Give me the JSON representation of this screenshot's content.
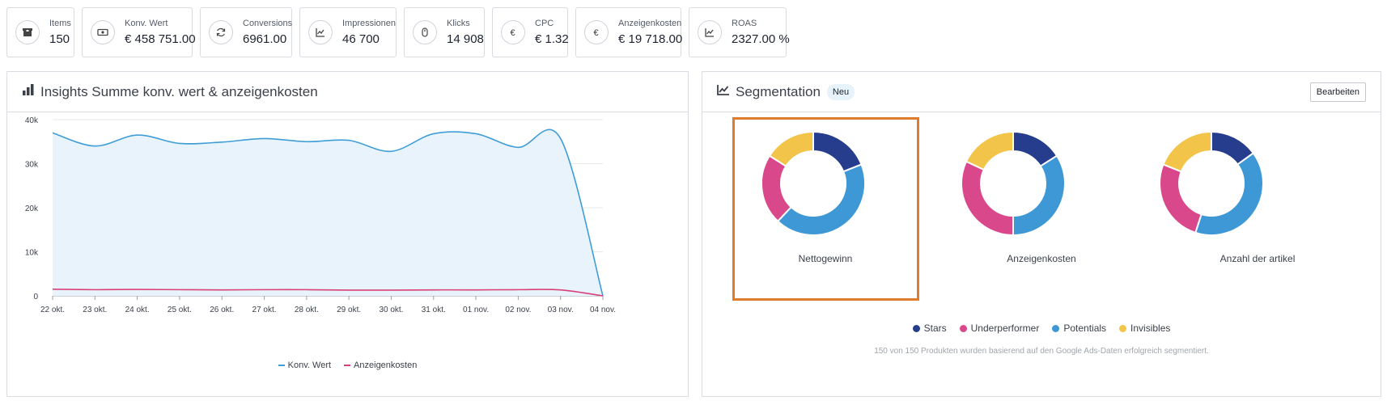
{
  "kpis": [
    {
      "label": "Items",
      "value": "150",
      "icon": "box-icon"
    },
    {
      "label": "Konv. Wert",
      "value": "€ 458 751.00",
      "icon": "money-icon"
    },
    {
      "label": "Conversions",
      "value": "6961.00",
      "icon": "refresh-icon"
    },
    {
      "label": "Impressionen",
      "value": "46 700",
      "icon": "line-chart-icon"
    },
    {
      "label": "Klicks",
      "value": "14 908",
      "icon": "mouse-icon"
    },
    {
      "label": "CPC",
      "value": "€ 1.32",
      "icon": "euro-icon"
    },
    {
      "label": "Anzeigenkosten",
      "value": "€ 19 718.00",
      "icon": "euro-icon"
    },
    {
      "label": "ROAS",
      "value": "2327.00 %",
      "icon": "line-chart-icon"
    }
  ],
  "insights": {
    "title": "Insights Summe konv. wert & anzeigenkosten"
  },
  "segmentation": {
    "title": "Segmentation",
    "badge": "Neu",
    "edit_label": "Bearbeiten",
    "note": "150 von 150 Produkten wurden basierend auf den Google Ads-Daten erfolgreich segmentiert."
  },
  "colors": {
    "stars": "#253d8c",
    "underperformer": "#d9488b",
    "potentials": "#3f98d6",
    "invisibles": "#f2c54a",
    "konv_wert": "#3f9ed6",
    "konv_wert_fill": "#e8f3fc",
    "anzeigenkosten": "#d9407a"
  },
  "chart_data": [
    {
      "type": "area",
      "title": "",
      "xlabel": "",
      "ylabel": "",
      "categories": [
        "22 okt.",
        "23 okt.",
        "24 okt.",
        "25 okt.",
        "26 okt.",
        "27 okt.",
        "28 okt.",
        "29 okt.",
        "30 okt.",
        "31 okt.",
        "01 nov.",
        "02 nov.",
        "03 nov.",
        "04 nov."
      ],
      "yticks": [
        "0",
        "10k",
        "20k",
        "30k",
        "40k"
      ],
      "ylim": [
        0,
        40000
      ],
      "series": [
        {
          "name": "Konv. Wert",
          "values": [
            37000,
            34000,
            36500,
            34600,
            34900,
            35700,
            35000,
            35300,
            32800,
            36800,
            36800,
            33700,
            35700,
            0
          ]
        },
        {
          "name": "Anzeigenkosten",
          "values": [
            1500,
            1400,
            1450,
            1400,
            1350,
            1400,
            1400,
            1300,
            1300,
            1350,
            1350,
            1400,
            1350,
            0
          ]
        }
      ],
      "grid": true,
      "legend": "bottom"
    },
    {
      "type": "pie",
      "title": "Nettogewinn",
      "categories": [
        "Stars",
        "Potentials",
        "Underperformer",
        "Invisibles"
      ],
      "values": [
        19,
        43,
        22,
        16
      ],
      "highlighted": true
    },
    {
      "type": "pie",
      "title": "Anzeigenkosten",
      "categories": [
        "Stars",
        "Potentials",
        "Underperformer",
        "Invisibles"
      ],
      "values": [
        16,
        34,
        32,
        18
      ],
      "highlighted": false
    },
    {
      "type": "pie",
      "title": "Anzahl der artikel",
      "categories": [
        "Stars",
        "Potentials",
        "Underperformer",
        "Invisibles"
      ],
      "values": [
        15,
        40,
        26,
        19
      ],
      "highlighted": false
    }
  ],
  "seg_legend": [
    {
      "label": "Stars",
      "color": "#253d8c"
    },
    {
      "label": "Underperformer",
      "color": "#d9488b"
    },
    {
      "label": "Potentials",
      "color": "#3f98d6"
    },
    {
      "label": "Invisibles",
      "color": "#f2c54a"
    }
  ]
}
